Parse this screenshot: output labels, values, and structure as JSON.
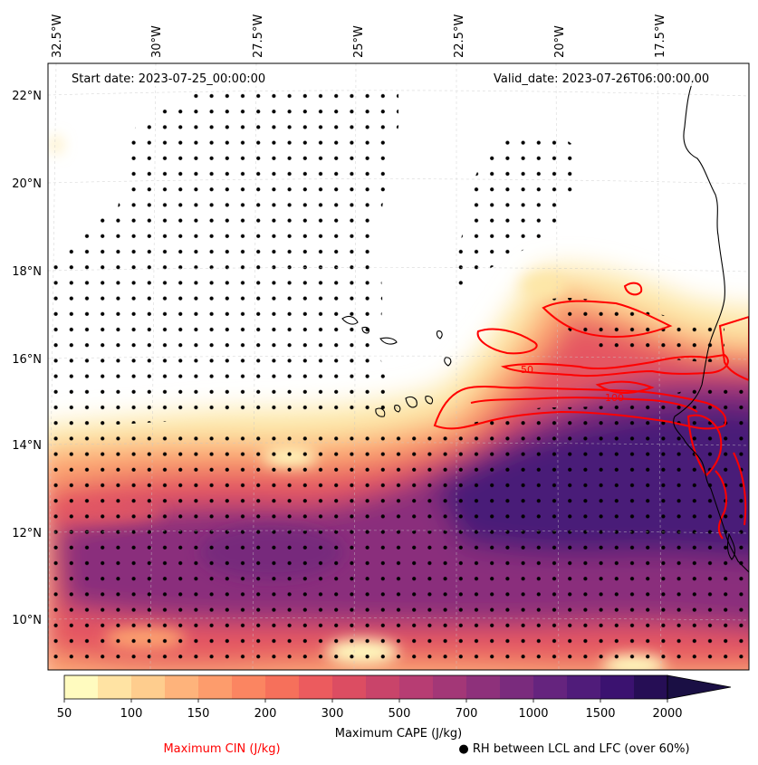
{
  "map": {
    "start_date": "Start date: 2023-07-25_00:00:00",
    "valid_date": "Valid_date: 2023-07-26T06:00:00.00",
    "longitude_labels": [
      "32.5°W",
      "30°W",
      "27.5°W",
      "25°W",
      "22.5°W",
      "20°W",
      "17.5°W"
    ],
    "latitude_labels": [
      "22°N",
      "20°N",
      "18°N",
      "16°N",
      "14°N",
      "12°N",
      "10°N"
    ],
    "lon_range": [
      -32.5,
      -14.7
    ],
    "lat_range": [
      8.9,
      22.8
    ]
  },
  "colorbar": {
    "label": "Maximum CAPE (J/kg)",
    "levels": [
      50,
      75,
      100,
      125,
      150,
      175,
      200,
      250,
      300,
      400,
      500,
      600,
      700,
      800,
      1000,
      1250,
      1500,
      1750,
      2000
    ],
    "tick_labels": [
      "50",
      "100",
      "150",
      "200",
      "300",
      "500",
      "700",
      "1000",
      "1500",
      "2000"
    ],
    "colors": [
      "#fffbbf",
      "#ffe3a3",
      "#fecd8e",
      "#feb37b",
      "#fd9c6c",
      "#fb8561",
      "#f6705b",
      "#ec5b5e",
      "#dc4d62",
      "#c9446a",
      "#b73d73",
      "#a33777",
      "#8e317b",
      "#7a2b7d",
      "#65247e",
      "#501c7a",
      "#3b1270",
      "#260e55",
      "#1a0f44"
    ],
    "extend": "max"
  },
  "legend": {
    "cin_label": "Maximum CIN (J/kg)",
    "cin_color": "#ff0000",
    "rh_label": "● RH between LCL and LFC (over 60%)"
  },
  "contour_labels": [
    "100",
    "50"
  ],
  "colors": {
    "coastline": "#000000",
    "cin_contour": "#ff0000",
    "gridline": "#c8c8c8",
    "stipple": "#000000"
  }
}
